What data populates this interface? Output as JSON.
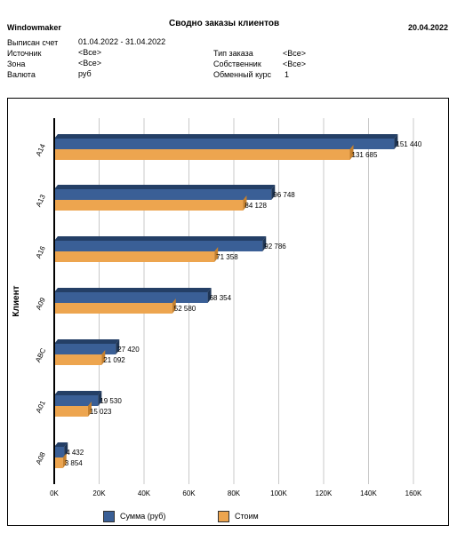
{
  "header": {
    "company": "Windowmaker",
    "title": "Сводно  заказы клиентов",
    "date": "20.04.2022",
    "left_labels": [
      "Выписан счет",
      "Источник",
      "Зона",
      "Валюта"
    ],
    "left_values": [
      "01.04.2022 - 31.04.2022",
      "<Все>",
      "<Все>",
      "руб"
    ],
    "right_labels": [
      "Тип заказа",
      "Собственник",
      "Обменный курс"
    ],
    "right_values": [
      "<Все>",
      "<Все>",
      "1"
    ]
  },
  "colors": {
    "series1": "#3a5f96",
    "series1_top": "#243f66",
    "series1_side": "#1f3656",
    "series2": "#eda54f",
    "series2_side": "#c4802e",
    "grid": "#c8c8c8",
    "axis": "#000000"
  },
  "chart_data": {
    "type": "bar",
    "orientation": "horizontal",
    "categories": [
      "A14",
      "A13",
      "A16",
      "A09",
      "ABC",
      "A01",
      "A08"
    ],
    "series": [
      {
        "name": "Сумма (руб)",
        "values": [
          151440,
          96748,
          92786,
          68354,
          27420,
          19530,
          4432
        ],
        "labels": [
          "151 440",
          "96 748",
          "92 786",
          "68 354",
          "27 420",
          "19 530",
          "4 432"
        ]
      },
      {
        "name": "Стоим",
        "values": [
          131685,
          84128,
          71358,
          52580,
          21092,
          15023,
          3854
        ],
        "labels": [
          "131 685",
          "84 128",
          "71 358",
          "52 580",
          "21 092",
          "15 023",
          "3 854"
        ]
      }
    ],
    "ylabel": "Клиент",
    "xlim": [
      0,
      160000
    ],
    "xticks": [
      0,
      20000,
      40000,
      60000,
      80000,
      100000,
      120000,
      140000,
      160000
    ],
    "xtick_labels": [
      "0K",
      "20K",
      "40K",
      "60K",
      "80K",
      "100K",
      "120K",
      "140K",
      "160K"
    ],
    "grid": true,
    "legend_position": "bottom"
  }
}
